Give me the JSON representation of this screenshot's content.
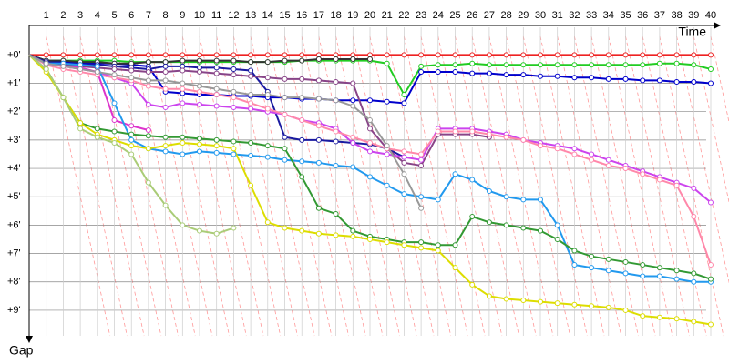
{
  "chart_data": {
    "type": "line",
    "x_label": "Time",
    "y_label": "Gap",
    "x": [
      0,
      1,
      2,
      3,
      4,
      5,
      6,
      7,
      8,
      9,
      10,
      11,
      12,
      13,
      14,
      15,
      16,
      17,
      18,
      19,
      20,
      21,
      22,
      23,
      24,
      25,
      26,
      27,
      28,
      29,
      30,
      31,
      32,
      33,
      34,
      35,
      36,
      37,
      38,
      39,
      40
    ],
    "xlim": [
      0,
      40
    ],
    "xticks": [
      1,
      2,
      3,
      4,
      5,
      6,
      7,
      8,
      9,
      10,
      11,
      12,
      13,
      14,
      15,
      16,
      17,
      18,
      19,
      20,
      21,
      22,
      23,
      24,
      25,
      26,
      27,
      28,
      29,
      30,
      31,
      32,
      33,
      34,
      35,
      36,
      37,
      38,
      39,
      40
    ],
    "ylim": [
      -0.3,
      9.9
    ],
    "yticks": [
      {
        "value": 0,
        "label": "+0'"
      },
      {
        "value": 1,
        "label": "+1'"
      },
      {
        "value": 2,
        "label": "+2'"
      },
      {
        "value": 3,
        "label": "+3'"
      },
      {
        "value": 4,
        "label": "+4'"
      },
      {
        "value": 5,
        "label": "+5'"
      },
      {
        "value": 6,
        "label": "+6'"
      },
      {
        "value": 7,
        "label": "+7'"
      },
      {
        "value": 8,
        "label": "+8'"
      },
      {
        "value": 9,
        "label": "+9'"
      }
    ],
    "y_inverted": true,
    "grid": true,
    "series": [
      {
        "color": "#ee2222",
        "values": [
          0,
          0,
          0,
          0,
          0,
          0,
          0,
          0,
          0,
          0,
          0,
          0,
          0,
          0,
          0,
          0,
          0,
          0,
          0,
          0,
          0,
          0,
          0,
          0,
          0,
          0,
          0,
          0,
          0,
          0,
          0,
          0,
          0,
          0,
          0,
          0,
          0,
          0,
          0,
          0,
          0
        ]
      },
      {
        "color": "#22cc22",
        "values": [
          0,
          0.2,
          0.2,
          0.2,
          0.2,
          0.2,
          0.25,
          0.25,
          0.25,
          0.25,
          0.25,
          0.25,
          0.25,
          0.25,
          0.25,
          0.25,
          0.2,
          0.2,
          0.2,
          0.2,
          0.2,
          0.3,
          1.4,
          0.4,
          0.35,
          0.35,
          0.3,
          0.35,
          0.35,
          0.35,
          0.35,
          0.35,
          0.35,
          0.35,
          0.35,
          0.35,
          0.35,
          0.3,
          0.3,
          0.35,
          0.5
        ]
      },
      {
        "color": "#0000cc",
        "values": [
          0,
          0.2,
          0.25,
          0.3,
          0.3,
          0.3,
          0.35,
          0.4,
          1.3,
          1.35,
          1.4,
          1.4,
          1.45,
          1.45,
          1.5,
          1.5,
          1.55,
          1.55,
          1.6,
          1.6,
          1.6,
          1.65,
          1.7,
          0.6,
          0.6,
          0.6,
          0.65,
          0.65,
          0.7,
          0.7,
          0.75,
          0.75,
          0.8,
          0.8,
          0.85,
          0.85,
          0.9,
          0.9,
          0.95,
          0.95,
          1.0
        ]
      },
      {
        "color": "#333333",
        "values": [
          0,
          0.2,
          0.2,
          0.25,
          0.25,
          0.3,
          0.3,
          0.25,
          0.25,
          0.2,
          0.2,
          0.2,
          0.2,
          0.25,
          0.25,
          0.2,
          0.2,
          0.15,
          0.15,
          0.15,
          0.15,
          null,
          null,
          null,
          null,
          null,
          null,
          null,
          null,
          null,
          null,
          null,
          null,
          null,
          null,
          null,
          null,
          null,
          null,
          null,
          null
        ]
      },
      {
        "color": "#1a1aa0",
        "values": [
          0,
          0.25,
          0.3,
          0.35,
          0.35,
          0.4,
          0.45,
          0.5,
          0.4,
          0.4,
          0.45,
          0.45,
          0.5,
          0.55,
          1.3,
          2.9,
          3.0,
          3.0,
          3.05,
          3.1,
          3.15,
          3.3,
          3.6,
          null,
          null,
          null,
          null,
          null,
          null,
          null,
          null,
          null,
          null,
          null,
          null,
          null,
          null,
          null,
          null,
          null,
          null
        ]
      },
      {
        "color": "#884488",
        "values": [
          0,
          0.3,
          0.35,
          0.4,
          0.45,
          0.5,
          0.55,
          0.6,
          0.6,
          0.55,
          0.6,
          0.65,
          0.7,
          0.75,
          0.8,
          0.85,
          0.85,
          0.9,
          0.95,
          1.0,
          2.6,
          3.3,
          3.8,
          3.9,
          2.8,
          2.8,
          2.8,
          2.9,
          null,
          null,
          null,
          null,
          null,
          null,
          null,
          null,
          null,
          null,
          null,
          null,
          null
        ]
      },
      {
        "color": "#cc44ee",
        "values": [
          0,
          0.3,
          0.4,
          0.5,
          0.6,
          0.8,
          1.0,
          1.75,
          1.85,
          1.7,
          1.75,
          1.8,
          1.85,
          1.9,
          2.0,
          2.1,
          2.3,
          2.4,
          2.6,
          3.1,
          3.4,
          3.5,
          3.6,
          3.7,
          2.6,
          2.6,
          2.6,
          2.7,
          2.8,
          3.0,
          3.1,
          3.2,
          3.3,
          3.5,
          3.7,
          3.9,
          4.1,
          4.3,
          4.5,
          4.7,
          5.2
        ]
      },
      {
        "color": "#dd33cc",
        "values": [
          0,
          0.3,
          0.4,
          0.45,
          0.6,
          2.3,
          2.5,
          2.65,
          null,
          null,
          null,
          null,
          null,
          null,
          null,
          null,
          null,
          null,
          null,
          null,
          null,
          null,
          null,
          null,
          null,
          null,
          null,
          null,
          null,
          null,
          null,
          null,
          null,
          null,
          null,
          null,
          null,
          null,
          null,
          null,
          null
        ]
      },
      {
        "color": "#ff88aa",
        "values": [
          0,
          0.35,
          0.5,
          0.6,
          0.7,
          0.8,
          0.9,
          1.1,
          1.2,
          1.2,
          1.3,
          1.4,
          1.5,
          1.7,
          1.9,
          2.1,
          2.3,
          2.5,
          2.7,
          2.9,
          3.1,
          3.3,
          3.4,
          3.5,
          2.7,
          2.7,
          2.7,
          2.8,
          2.9,
          3.0,
          3.2,
          3.3,
          3.5,
          3.7,
          3.9,
          4.0,
          4.2,
          4.4,
          4.6,
          5.7,
          7.4
        ]
      },
      {
        "color": "#2299ee",
        "values": [
          0,
          0.3,
          0.3,
          0.35,
          0.4,
          1.7,
          3.0,
          3.3,
          3.4,
          3.5,
          3.4,
          3.45,
          3.5,
          3.55,
          3.6,
          3.7,
          3.75,
          3.8,
          3.9,
          3.95,
          4.3,
          4.6,
          4.9,
          5.0,
          5.1,
          4.2,
          4.4,
          4.8,
          5.0,
          5.1,
          5.1,
          6.0,
          7.4,
          7.5,
          7.6,
          7.7,
          7.8,
          7.8,
          7.9,
          8.0,
          8.0
        ]
      },
      {
        "color": "#339933",
        "values": [
          0,
          0.5,
          1.5,
          2.4,
          2.6,
          2.7,
          2.8,
          2.85,
          2.9,
          2.9,
          2.95,
          3.0,
          3.05,
          3.1,
          3.2,
          3.3,
          4.3,
          5.4,
          5.6,
          6.2,
          6.4,
          6.5,
          6.6,
          6.6,
          6.7,
          6.7,
          5.7,
          5.9,
          6.0,
          6.1,
          6.2,
          6.5,
          6.9,
          7.1,
          7.2,
          7.3,
          7.4,
          7.5,
          7.6,
          7.7,
          7.9
        ]
      },
      {
        "color": "#dddd00",
        "values": [
          0,
          0.6,
          1.5,
          2.4,
          2.8,
          3.0,
          3.2,
          3.3,
          3.2,
          3.1,
          3.15,
          3.2,
          3.3,
          4.6,
          5.9,
          6.1,
          6.2,
          6.3,
          6.35,
          6.4,
          6.5,
          6.6,
          6.7,
          6.8,
          6.9,
          7.5,
          8.1,
          8.5,
          8.6,
          8.65,
          8.7,
          8.75,
          8.8,
          8.85,
          8.9,
          9.0,
          9.2,
          9.25,
          9.3,
          9.4,
          9.5
        ]
      },
      {
        "color": "#aacc77",
        "values": [
          0,
          0.5,
          1.5,
          2.6,
          2.9,
          3.1,
          3.5,
          4.5,
          5.3,
          6.0,
          6.2,
          6.3,
          6.1,
          null,
          null,
          null,
          null,
          null,
          null,
          null,
          null,
          null,
          null,
          null,
          null,
          null,
          null,
          null,
          null,
          null,
          null,
          null,
          null,
          null,
          null,
          null,
          null,
          null,
          null,
          null,
          null
        ]
      },
      {
        "color": "#999999",
        "values": [
          0,
          0.3,
          0.4,
          0.5,
          0.6,
          0.7,
          0.8,
          0.9,
          0.9,
          1.0,
          1.1,
          1.2,
          1.3,
          1.4,
          1.4,
          1.5,
          1.5,
          1.55,
          1.6,
          1.8,
          2.3,
          3.2,
          4.2,
          5.4,
          null,
          null,
          null,
          null,
          null,
          null,
          null,
          null,
          null,
          null,
          null,
          null,
          null,
          null,
          null,
          null,
          null
        ]
      }
    ]
  }
}
